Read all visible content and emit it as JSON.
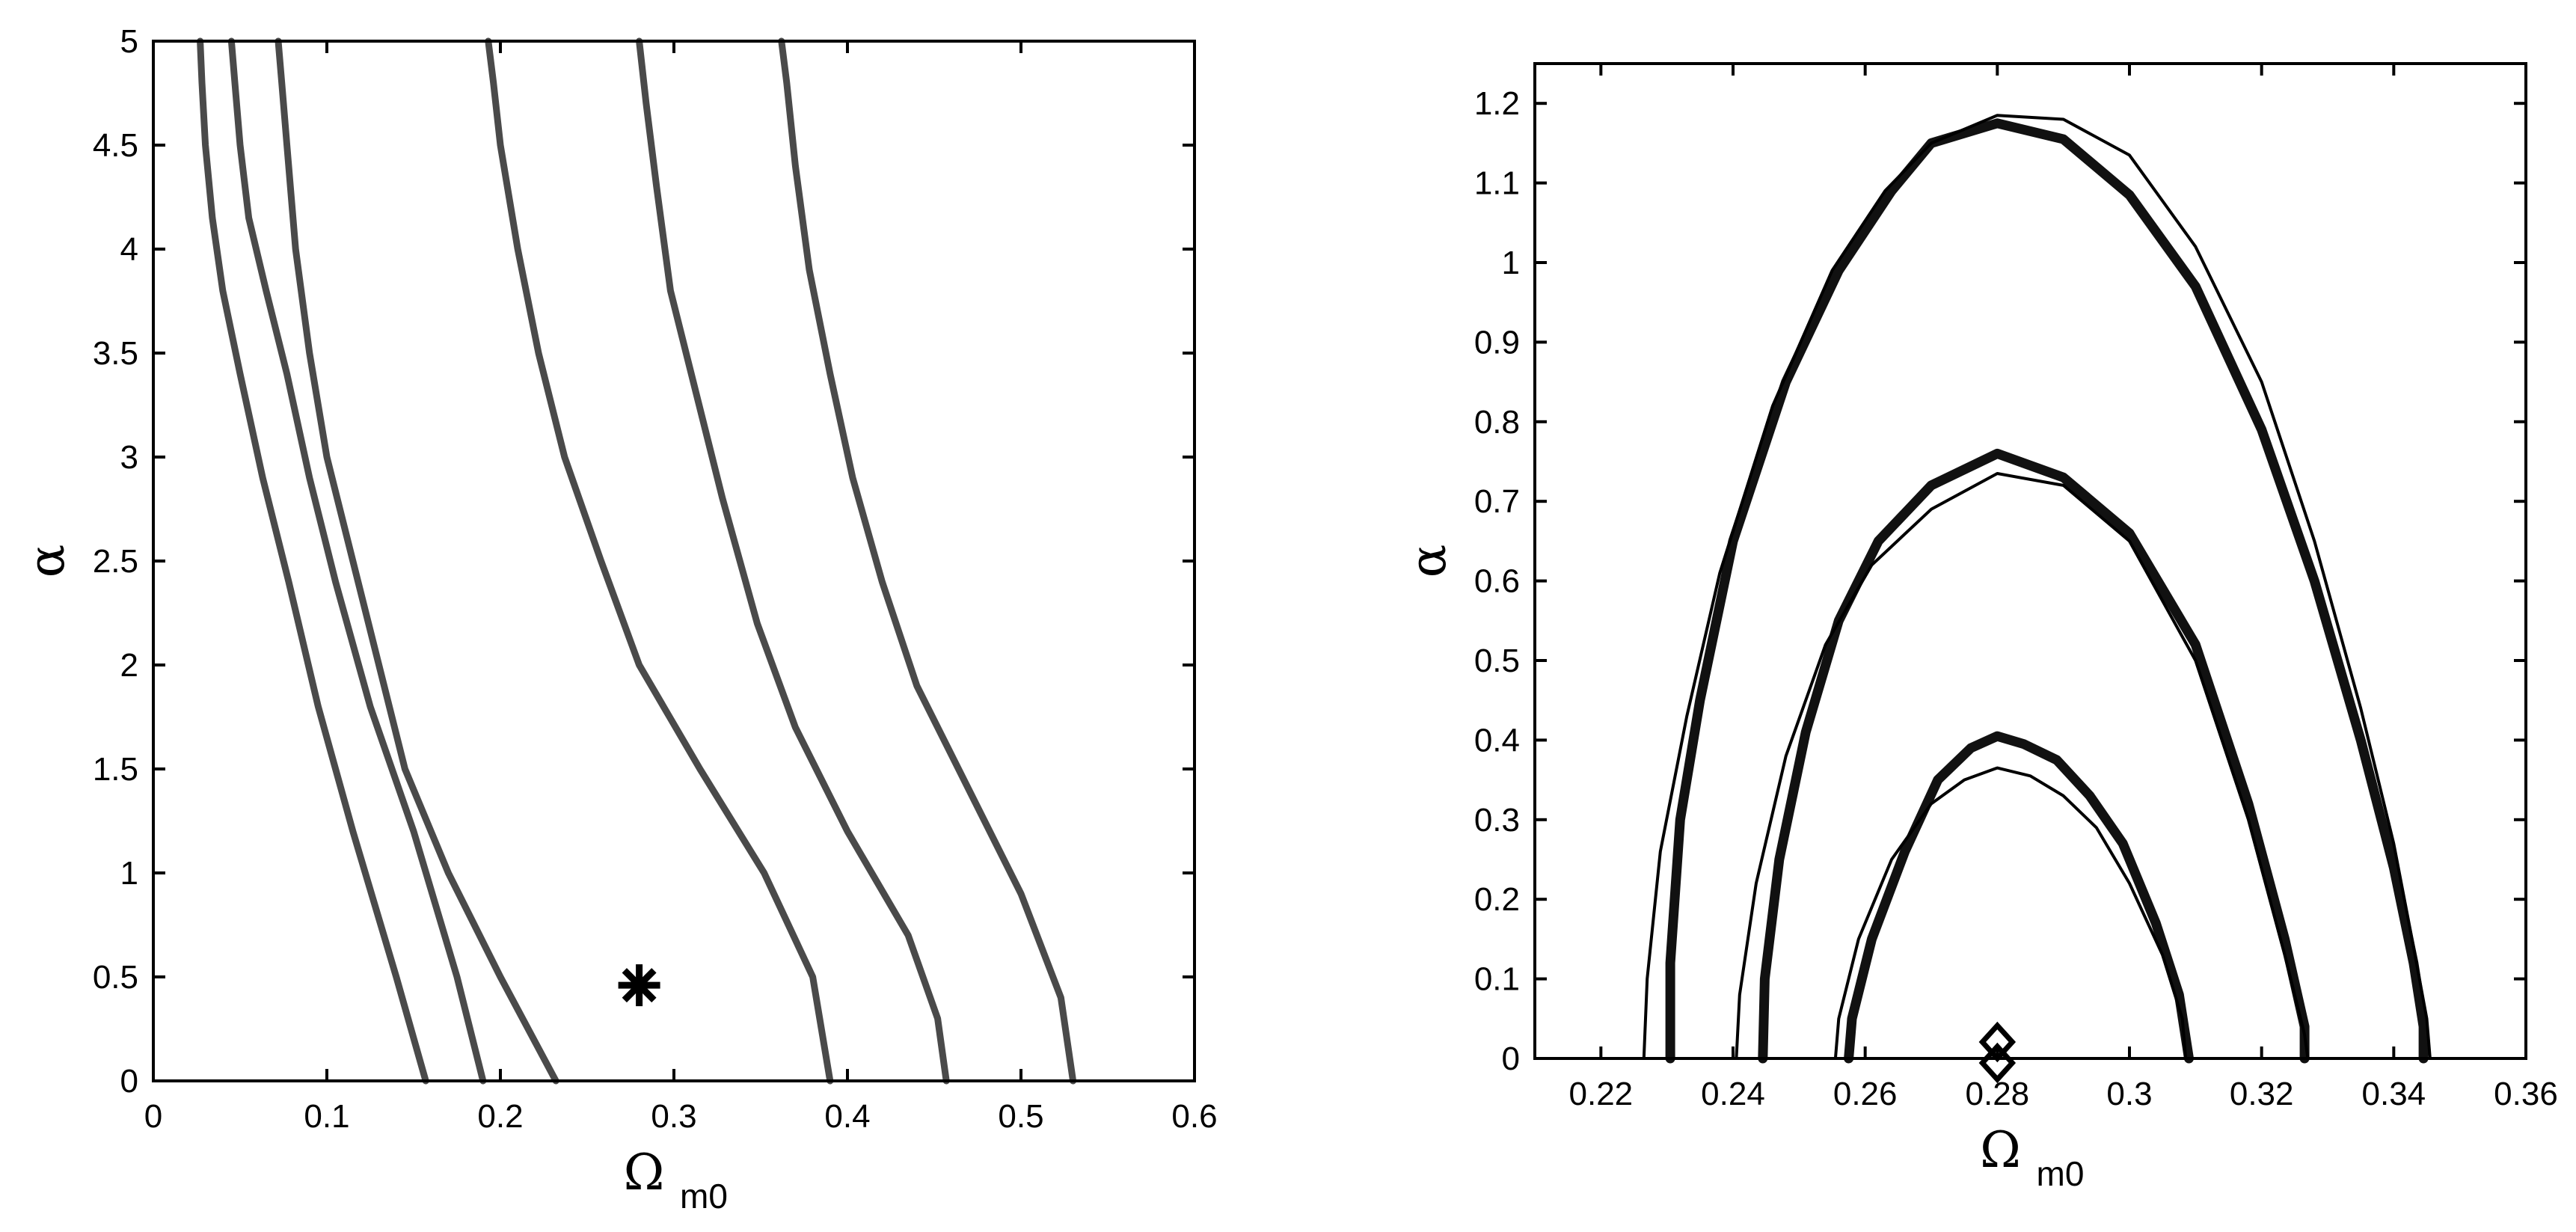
{
  "chart_data": [
    {
      "type": "line",
      "title": "",
      "xlabel": "Ω",
      "xlabel_sub": "m0",
      "ylabel": "α",
      "xlim": [
        0,
        0.6
      ],
      "ylim": [
        0,
        5
      ],
      "xticks": [
        "0",
        "0.1",
        "0.2",
        "0.3",
        "0.4",
        "0.5",
        "0.6"
      ],
      "yticks": [
        "0",
        "0.5",
        "1",
        "1.5",
        "2",
        "2.5",
        "3",
        "3.5",
        "4",
        "4.5",
        "5"
      ],
      "grid": false,
      "line_color": "#4a4a4a",
      "series": [
        {
          "x": [
            0.157,
            0.14,
            0.115,
            0.095,
            0.078,
            0.063,
            0.05,
            0.04,
            0.034,
            0.03,
            0.028,
            0.027
          ],
          "y": [
            0,
            0.5,
            1.2,
            1.8,
            2.4,
            2.9,
            3.4,
            3.8,
            4.15,
            4.5,
            4.8,
            5.0
          ]
        },
        {
          "x": [
            0.19,
            0.175,
            0.15,
            0.125,
            0.105,
            0.09,
            0.077,
            0.065,
            0.055,
            0.05,
            0.047,
            0.045
          ],
          "y": [
            0,
            0.5,
            1.2,
            1.8,
            2.4,
            2.9,
            3.4,
            3.8,
            4.15,
            4.5,
            4.8,
            5.0
          ]
        },
        {
          "x": [
            0.232,
            0.2,
            0.17,
            0.145,
            0.13,
            0.115,
            0.1,
            0.09,
            0.082,
            0.077,
            0.074,
            0.072
          ],
          "y": [
            0,
            0.5,
            1.0,
            1.5,
            2.0,
            2.5,
            3.0,
            3.5,
            4.0,
            4.5,
            4.8,
            5.0
          ]
        },
        {
          "x": [
            0.39,
            0.38,
            0.352,
            0.315,
            0.28,
            0.258,
            0.237,
            0.222,
            0.21,
            0.2,
            0.196,
            0.193
          ],
          "y": [
            0,
            0.5,
            1.0,
            1.5,
            2.0,
            2.5,
            3.0,
            3.5,
            4.0,
            4.5,
            4.8,
            5.0
          ]
        },
        {
          "x": [
            0.457,
            0.452,
            0.435,
            0.4,
            0.37,
            0.348,
            0.328,
            0.313,
            0.298,
            0.29,
            0.284,
            0.28
          ],
          "y": [
            0,
            0.3,
            0.7,
            1.2,
            1.7,
            2.2,
            2.8,
            3.3,
            3.8,
            4.3,
            4.7,
            5.0
          ]
        },
        {
          "x": [
            0.53,
            0.523,
            0.5,
            0.47,
            0.44,
            0.42,
            0.403,
            0.39,
            0.378,
            0.37,
            0.365,
            0.362
          ],
          "y": [
            0,
            0.4,
            0.9,
            1.4,
            1.9,
            2.4,
            2.9,
            3.4,
            3.9,
            4.4,
            4.8,
            5.0
          ]
        }
      ],
      "marker": {
        "symbol": "*",
        "x": 0.28,
        "y": 0.46
      }
    },
    {
      "type": "line",
      "title": "",
      "xlabel": "Ω",
      "xlabel_sub": "m0",
      "ylabel": "α",
      "xlim": [
        0.21,
        0.36
      ],
      "ylim": [
        0,
        1.25
      ],
      "xticks": [
        "0.22",
        "0.24",
        "0.26",
        "0.28",
        "0.3",
        "0.32",
        "0.34",
        "0.36"
      ],
      "yticks": [
        "0",
        "0.1",
        "0.2",
        "0.3",
        "0.4",
        "0.5",
        "0.6",
        "0.7",
        "0.8",
        "0.9",
        "1",
        "1.1",
        "1.2"
      ],
      "grid": false,
      "line_color": "#000000",
      "series": [
        {
          "style": "thick",
          "x": [
            0.2575,
            0.258,
            0.261,
            0.266,
            0.271,
            0.276,
            0.28,
            0.284,
            0.289,
            0.294,
            0.299,
            0.304,
            0.3075,
            0.309
          ],
          "y": [
            0,
            0.05,
            0.15,
            0.26,
            0.35,
            0.39,
            0.405,
            0.395,
            0.375,
            0.33,
            0.27,
            0.17,
            0.08,
            0
          ]
        },
        {
          "style": "thin",
          "x": [
            0.2555,
            0.256,
            0.259,
            0.264,
            0.27,
            0.275,
            0.28,
            0.285,
            0.29,
            0.295,
            0.3,
            0.305,
            0.308,
            0.3085
          ],
          "y": [
            0,
            0.05,
            0.15,
            0.25,
            0.32,
            0.35,
            0.365,
            0.355,
            0.33,
            0.29,
            0.22,
            0.13,
            0.05,
            0
          ]
        },
        {
          "style": "thick",
          "x": [
            0.2445,
            0.2448,
            0.247,
            0.251,
            0.256,
            0.262,
            0.27,
            0.28,
            0.29,
            0.3,
            0.31,
            0.318,
            0.3235,
            0.3265,
            0.3265
          ],
          "y": [
            0,
            0.1,
            0.25,
            0.41,
            0.55,
            0.65,
            0.72,
            0.76,
            0.73,
            0.66,
            0.52,
            0.32,
            0.15,
            0.04,
            0
          ]
        },
        {
          "style": "thin",
          "x": [
            0.2405,
            0.241,
            0.2435,
            0.248,
            0.254,
            0.261,
            0.27,
            0.28,
            0.29,
            0.3,
            0.31,
            0.318,
            0.3235,
            0.3265,
            0.327
          ],
          "y": [
            0,
            0.08,
            0.22,
            0.38,
            0.52,
            0.62,
            0.69,
            0.735,
            0.72,
            0.65,
            0.5,
            0.3,
            0.13,
            0.03,
            0
          ]
        },
        {
          "style": "thick",
          "x": [
            0.2305,
            0.2305,
            0.232,
            0.235,
            0.24,
            0.248,
            0.256,
            0.264,
            0.27,
            0.28,
            0.29,
            0.3,
            0.31,
            0.32,
            0.328,
            0.335,
            0.34,
            0.343,
            0.3445,
            0.3445
          ],
          "y": [
            0,
            0.12,
            0.3,
            0.45,
            0.65,
            0.85,
            0.99,
            1.09,
            1.15,
            1.175,
            1.155,
            1.085,
            0.97,
            0.79,
            0.6,
            0.4,
            0.24,
            0.12,
            0.04,
            0
          ]
        },
        {
          "style": "thin",
          "x": [
            0.2265,
            0.227,
            0.229,
            0.233,
            0.238,
            0.246,
            0.255,
            0.263,
            0.27,
            0.28,
            0.29,
            0.3,
            0.31,
            0.32,
            0.328,
            0.335,
            0.34,
            0.343,
            0.345,
            0.3455
          ],
          "y": [
            0,
            0.1,
            0.26,
            0.43,
            0.61,
            0.82,
            0.99,
            1.09,
            1.15,
            1.185,
            1.18,
            1.135,
            1.02,
            0.85,
            0.65,
            0.44,
            0.27,
            0.14,
            0.05,
            0
          ]
        }
      ],
      "marker": {
        "symbol": "◇",
        "x": 0.28,
        "y": 0.0
      }
    }
  ]
}
